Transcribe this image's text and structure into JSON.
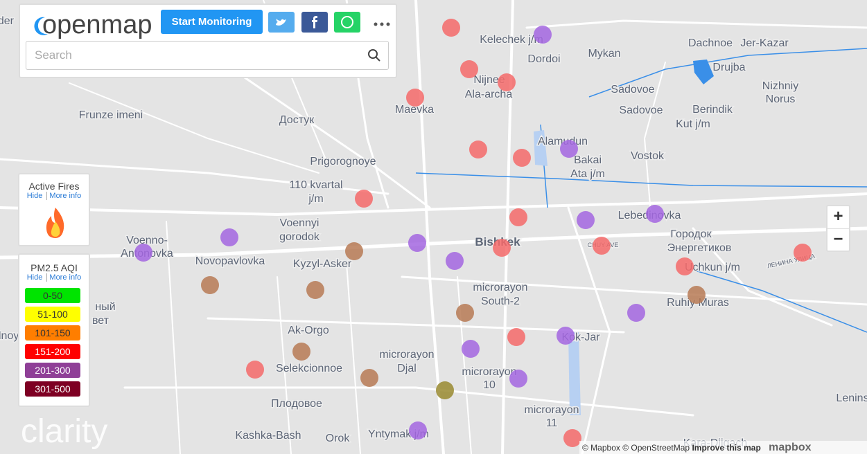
{
  "header": {
    "logo": "openmap",
    "button": "Start Monitoring",
    "search_placeholder": "Search"
  },
  "fires_panel": {
    "title": "Active Fires",
    "hide": "Hide",
    "more_info": "More info"
  },
  "aqi_legend": {
    "title": "PM2.5 AQI",
    "hide": "Hide",
    "more_info": "More info",
    "levels": [
      {
        "label": "0-50",
        "color": "#00e400"
      },
      {
        "label": "51-100",
        "color": "#ffff00"
      },
      {
        "label": "101-150",
        "color": "#ff7e00"
      },
      {
        "label": "151-200",
        "color": "#ff0000"
      },
      {
        "label": "201-300",
        "color": "#8f3f97"
      },
      {
        "label": "301-500",
        "color": "#7e0023"
      }
    ]
  },
  "map_labels": [
    "nder",
    "Kelechek j/m",
    "Dordoi",
    "Mykan",
    "Dachnoe",
    "Jer-Kazar",
    "Drujba",
    "Nizhniy",
    "Norus",
    "Nijnee",
    "Ala-archa",
    "Maevka",
    "Sadovoe",
    "Sadovoe",
    "Berindik",
    "Kut j/m",
    "Frunze imeni",
    "Достук",
    "Alamudun",
    "Bakai",
    "Ata j/m",
    "Vostok",
    "Prigorognoye",
    "110 kvartal",
    "j/m",
    "Voennyi",
    "gorodok",
    "Lebedinovka",
    "Городок",
    "Энергетиков",
    "Voenno-",
    "Antonovka",
    "Novopavlovka",
    "Kyzyl-Asker",
    "Bishkek",
    "Uchkun j/m",
    "microrayon",
    "South-2",
    "Ruhiy Muras",
    "ный",
    "вет",
    "dnoy",
    "Ak-Orgo",
    "Kok-Jar",
    "microrayon",
    "Djal",
    "Selekcionnoe",
    "microrayon",
    "10",
    "Плодовое",
    "microrayon",
    "11",
    "Kashka-Bash",
    "Orok",
    "Yntymak j/m",
    "Lenins",
    "Kara-Dijgach",
    "CHUY AVE",
    "ЛЕНИНА УЛИЦА"
  ],
  "zoom": {
    "in": "+",
    "out": "−"
  },
  "brand": "clarity",
  "attribution": {
    "mapbox": "© Mapbox",
    "osm": "© OpenStreetMap",
    "improve": "Improve this map",
    "logo": "mapbox"
  }
}
